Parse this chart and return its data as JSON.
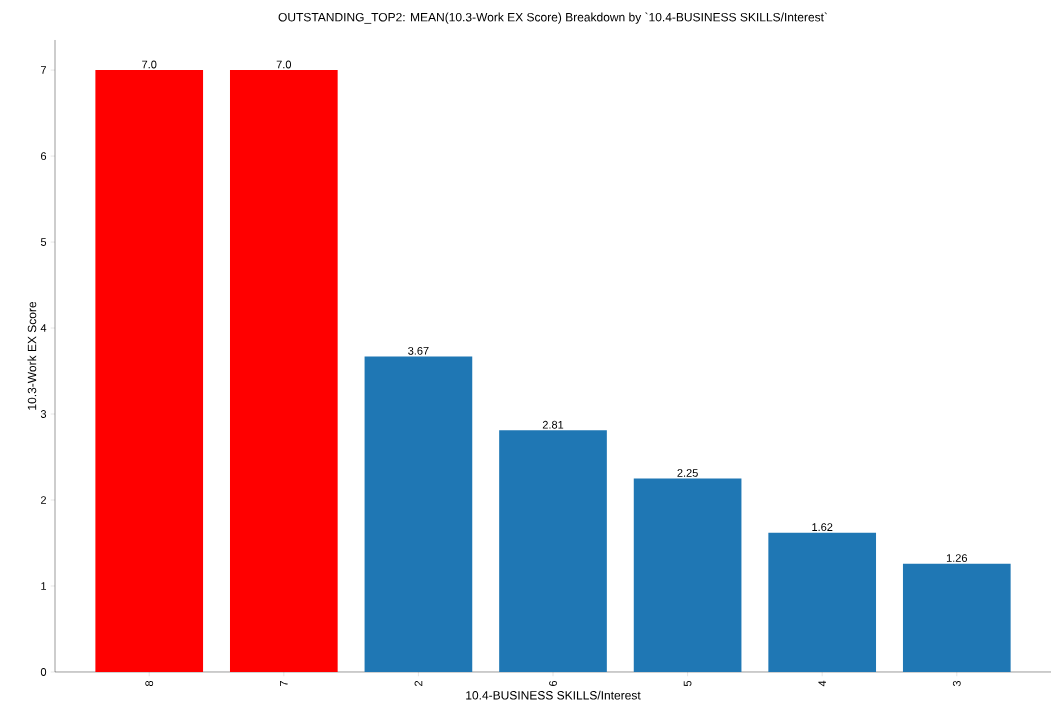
{
  "chart_data": {
    "type": "bar",
    "title": "OUTSTANDING_TOP2: MEAN(10.3-Work EX Score) Breakdown by `10.4-BUSINESS SKILLS/Interest`",
    "xlabel": "10.4-BUSINESS SKILLS/Interest",
    "ylabel": "10.3-Work EX Score",
    "categories": [
      "8",
      "7",
      "2",
      "6",
      "5",
      "4",
      "3"
    ],
    "values": [
      7.0,
      7.0,
      3.67,
      2.81,
      2.25,
      1.62,
      1.26
    ],
    "colors": [
      "#ff0000",
      "#ff0000",
      "#1f77b4",
      "#1f77b4",
      "#1f77b4",
      "#1f77b4",
      "#1f77b4"
    ],
    "value_labels": [
      "7.0",
      "7.0",
      "3.67",
      "2.81",
      "2.25",
      "1.62",
      "1.26"
    ],
    "ylim": [
      0,
      7.35
    ],
    "yticks": [
      0,
      1,
      2,
      3,
      4,
      5,
      6,
      7
    ]
  }
}
